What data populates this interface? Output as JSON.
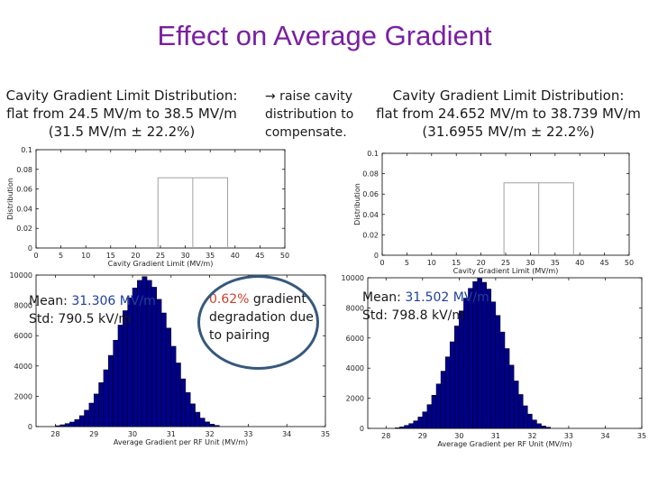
{
  "slide": {
    "title": "Effect on Average Gradient",
    "left_caption": [
      "Cavity Gradient Limit Distribution:",
      "flat from 24.5 MV/m to 38.5 MV/m",
      "(31.5 MV/m ± 22.2%)"
    ],
    "arrow_note_arrow": "→",
    "arrow_note": [
      " raise cavity",
      "distribution to",
      "compensate."
    ],
    "right_caption": [
      "Cavity Gradient Limit Distribution:",
      "flat from 24.652 MV/m to 38.739 MV/m",
      "(31.6955 MV/m ± 22.2%)"
    ],
    "left_stats": {
      "mean_prefix": "Mean: ",
      "mean_value": "31.306 MV/m",
      "std": "Std:  790.5 kV/m"
    },
    "right_stats": {
      "mean_prefix": "Mean: ",
      "mean_value": "31.502 MV/m",
      "std": "Std:  798.8 kV/m"
    },
    "degradation": {
      "value": "0.62%",
      "rest": [
        " gradient",
        "degradation due",
        "to pairing"
      ]
    }
  },
  "colors": {
    "title": "#7a1fa2",
    "bar_fill": "#00008b",
    "dist_line": "#a0a0a0",
    "accent_text": "#1f3fa0",
    "red_text": "#d0402a",
    "circle": "#36587c"
  },
  "chart_data": [
    {
      "type": "line",
      "name": "left-uniform",
      "xlabel": "Cavity Gradient Limit (MV/m)",
      "ylabel": "Distribution",
      "xlim": [
        0,
        50
      ],
      "ylim": [
        0,
        0.1
      ],
      "xticks": [
        0,
        5,
        10,
        15,
        20,
        25,
        30,
        35,
        40,
        45,
        50
      ],
      "yticks": [
        0,
        0.02,
        0.04,
        0.06,
        0.08,
        0.1
      ],
      "ytick_labels": [
        "0",
        "0.02",
        "0.04",
        "0.06",
        "0.08",
        "0.1"
      ],
      "x": [
        24.5,
        24.5,
        31.5,
        38.5,
        38.5
      ],
      "y": [
        0,
        0.0714,
        0.0714,
        0.0714,
        0
      ]
    },
    {
      "type": "line",
      "name": "right-uniform",
      "xlabel": "Cavity Gradient Limit (MV/m)",
      "ylabel": "Distribution",
      "xlim": [
        0,
        50
      ],
      "ylim": [
        0,
        0.1
      ],
      "xticks": [
        0,
        5,
        10,
        15,
        20,
        25,
        30,
        35,
        40,
        45,
        50
      ],
      "yticks": [
        0,
        0.02,
        0.04,
        0.06,
        0.08,
        0.1
      ],
      "ytick_labels": [
        "0",
        "0.02",
        "0.04",
        "0.06",
        "0.08",
        "0.1"
      ],
      "x": [
        24.652,
        24.652,
        31.6955,
        38.739,
        38.739
      ],
      "y": [
        0,
        0.071,
        0.071,
        0.071,
        0
      ]
    },
    {
      "type": "bar",
      "name": "left-histogram",
      "xlabel": "Average Gradient per RF Unit (MV/m)",
      "xlim": [
        27.5,
        35
      ],
      "ylim": [
        0,
        10000
      ],
      "xticks": [
        28,
        29,
        30,
        31,
        32,
        33,
        34,
        35
      ],
      "yticks": [
        0,
        2000,
        4000,
        6000,
        8000,
        10000
      ],
      "bin_width": 0.125,
      "bin_start": 28.0,
      "values": [
        60,
        120,
        200,
        300,
        470,
        720,
        1080,
        1550,
        2150,
        2900,
        3750,
        4700,
        5700,
        6700,
        7650,
        8500,
        9150,
        9650,
        9900,
        9650,
        9200,
        8400,
        7500,
        6500,
        5300,
        4200,
        3150,
        2250,
        1500,
        950,
        560,
        310,
        160,
        80
      ]
    },
    {
      "type": "bar",
      "name": "right-histogram",
      "xlabel": "Average Gradient per RF Unit (MV/m)",
      "xlim": [
        27.5,
        35
      ],
      "ylim": [
        0,
        10000
      ],
      "xticks": [
        28,
        29,
        30,
        31,
        32,
        33,
        34,
        35
      ],
      "yticks": [
        0,
        2000,
        4000,
        6000,
        8000,
        10000
      ],
      "bin_width": 0.125,
      "bin_start": 28.25,
      "values": [
        40,
        100,
        200,
        320,
        500,
        760,
        1100,
        1580,
        2200,
        2950,
        3800,
        4750,
        5750,
        6800,
        7800,
        8650,
        9300,
        9750,
        9950,
        9700,
        9250,
        8400,
        7500,
        6400,
        5300,
        4200,
        3150,
        2250,
        1500,
        950,
        560,
        310,
        160,
        80
      ]
    }
  ]
}
